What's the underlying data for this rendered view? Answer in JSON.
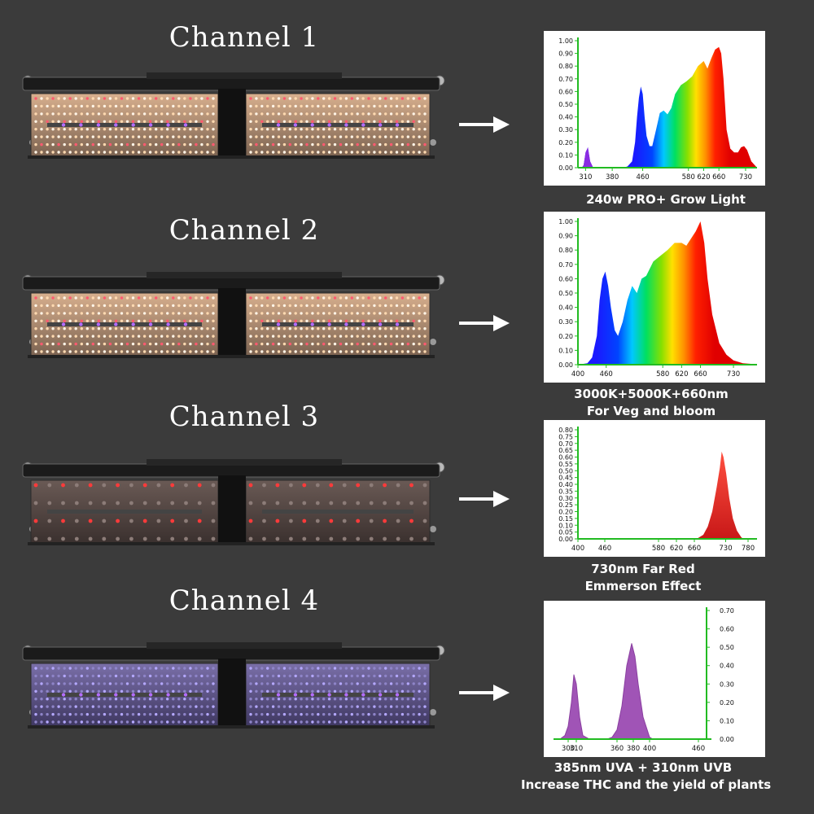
{
  "colors": {
    "background": "#3b3b3b",
    "axis_green": "#22bb22",
    "uv_purple": "#a054b6",
    "far_red": "#ff3a2a"
  },
  "channels": [
    {
      "title": "Channel 1",
      "led_style": "full",
      "caption": [
        "240w PRO+ Grow Light"
      ],
      "chart_data": {
        "type": "area",
        "style": "rainbow",
        "xticks": [
          310,
          380,
          460,
          580,
          620,
          660,
          730
        ],
        "xlim": [
          290,
          760
        ],
        "ylim": [
          0,
          1.0
        ],
        "yticks": [
          "0.00",
          "0.10",
          "0.20",
          "0.30",
          "0.40",
          "0.50",
          "0.60",
          "0.70",
          "0.80",
          "0.90",
          "1.00"
        ],
        "x": [
          290,
          300,
          305,
          310,
          316,
          322,
          330,
          340,
          350,
          360,
          380,
          400,
          410,
          420,
          432,
          440,
          445,
          450,
          455,
          460,
          465,
          470,
          478,
          485,
          495,
          505,
          515,
          525,
          535,
          545,
          560,
          575,
          590,
          605,
          620,
          630,
          640,
          650,
          660,
          666,
          672,
          680,
          690,
          700,
          710,
          718,
          726,
          734,
          745,
          760
        ],
        "y": [
          0,
          0,
          0.02,
          0.12,
          0.16,
          0.05,
          0,
          0,
          0,
          0,
          0,
          0,
          0,
          0.01,
          0.05,
          0.2,
          0.4,
          0.55,
          0.64,
          0.58,
          0.4,
          0.25,
          0.17,
          0.17,
          0.3,
          0.43,
          0.45,
          0.42,
          0.47,
          0.58,
          0.65,
          0.68,
          0.72,
          0.8,
          0.84,
          0.78,
          0.86,
          0.93,
          0.95,
          0.9,
          0.7,
          0.3,
          0.15,
          0.12,
          0.12,
          0.16,
          0.17,
          0.14,
          0.05,
          0
        ]
      }
    },
    {
      "title": "Channel 2",
      "led_style": "full",
      "caption": [
        "3000K+5000K+660nm",
        "For Veg  and  bloom"
      ],
      "chart_data": {
        "type": "area",
        "style": "rainbow",
        "xticks": [
          400,
          460,
          580,
          620,
          660,
          730
        ],
        "xlim": [
          400,
          780
        ],
        "ylim": [
          0,
          1.0
        ],
        "yticks": [
          "0.00",
          "0.10",
          "0.20",
          "0.30",
          "0.40",
          "0.50",
          "0.60",
          "0.70",
          "0.80",
          "0.90",
          "1.00"
        ],
        "x": [
          400,
          420,
          430,
          440,
          446,
          452,
          458,
          464,
          470,
          478,
          485,
          495,
          505,
          515,
          525,
          535,
          545,
          560,
          575,
          590,
          605,
          620,
          630,
          640,
          650,
          660,
          668,
          675,
          685,
          700,
          715,
          730,
          750,
          770,
          780
        ],
        "y": [
          0,
          0.01,
          0.05,
          0.2,
          0.45,
          0.6,
          0.65,
          0.55,
          0.4,
          0.24,
          0.2,
          0.3,
          0.45,
          0.55,
          0.5,
          0.6,
          0.62,
          0.72,
          0.76,
          0.8,
          0.85,
          0.85,
          0.83,
          0.88,
          0.93,
          1.0,
          0.85,
          0.6,
          0.35,
          0.15,
          0.07,
          0.03,
          0.01,
          0.005,
          0
        ]
      }
    },
    {
      "title": "Channel 3",
      "led_style": "sparse",
      "caption": [
        "730nm  Far  Red",
        "Emmerson Effect"
      ],
      "chart_data": {
        "type": "area",
        "style": "farred",
        "xticks": [
          400,
          460,
          580,
          620,
          660,
          730,
          780
        ],
        "xlim": [
          400,
          800
        ],
        "ylim": [
          0,
          0.8
        ],
        "yticks": [
          "0.00",
          "0.05",
          "0.10",
          "0.15",
          "0.20",
          "0.25",
          "0.30",
          "0.35",
          "0.40",
          "0.45",
          "0.50",
          "0.55",
          "0.60",
          "0.65",
          "0.70",
          "0.75",
          "0.80"
        ],
        "x": [
          665,
          680,
          690,
          700,
          710,
          717,
          721,
          725,
          731,
          738,
          746,
          755,
          765,
          770
        ],
        "y": [
          0,
          0.03,
          0.09,
          0.2,
          0.38,
          0.52,
          0.64,
          0.6,
          0.48,
          0.3,
          0.15,
          0.06,
          0.01,
          0
        ]
      }
    },
    {
      "title": "Channel 4",
      "led_style": "uv",
      "caption": [
        "385nm UVA + 310nm  UVB",
        "Increase  THC and the yield of plants"
      ],
      "chart_data": {
        "type": "area",
        "style": "uv",
        "xticks": [
          300,
          310,
          360,
          380,
          400,
          460
        ],
        "xlim": [
          288,
          470
        ],
        "ylim": [
          0,
          0.7
        ],
        "yaxis_position": "right",
        "yticks": [
          "0.00",
          "0.10",
          "0.20",
          "0.30",
          "0.40",
          "0.50",
          "0.60",
          "0.70"
        ],
        "x": [
          290,
          296,
          300,
          304,
          307,
          310,
          314,
          318,
          326,
          330,
          340,
          348,
          354,
          360,
          366,
          372,
          378,
          382,
          386,
          392,
          400,
          404
        ],
        "y": [
          0,
          0.02,
          0.07,
          0.2,
          0.35,
          0.3,
          0.12,
          0.02,
          0,
          0,
          0,
          0,
          0.01,
          0.05,
          0.18,
          0.4,
          0.52,
          0.45,
          0.3,
          0.12,
          0.01,
          0
        ]
      }
    }
  ]
}
